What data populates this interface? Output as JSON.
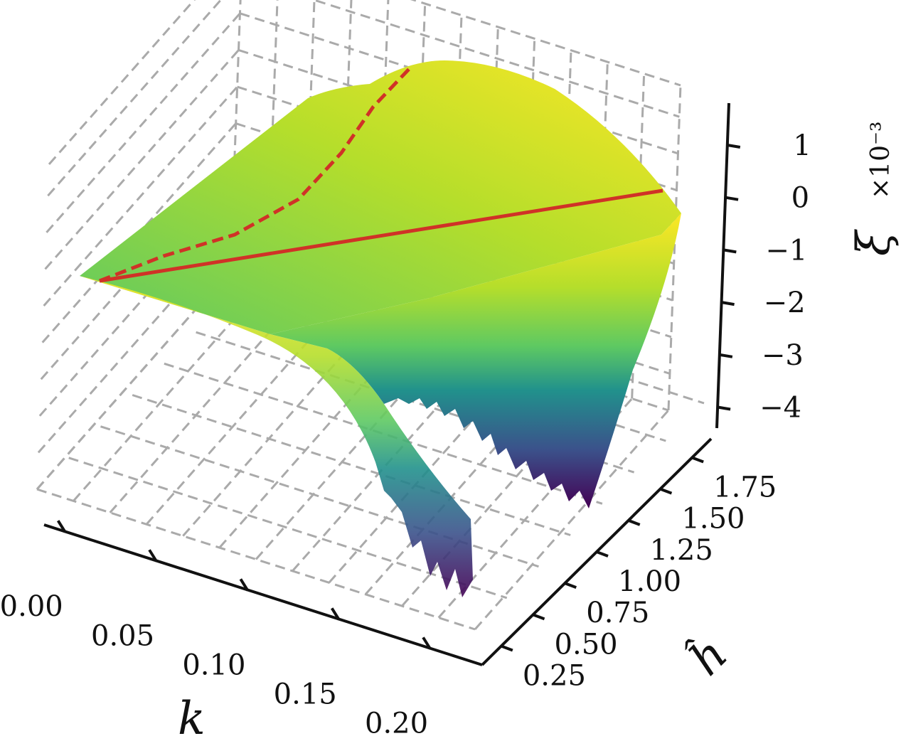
{
  "chart_data": {
    "type": "surface3d",
    "colormap": "viridis",
    "grid": true,
    "axes": {
      "x": {
        "label": "k",
        "ticks": [
          "0.00",
          "0.05",
          "0.10",
          "0.15",
          "0.20"
        ],
        "tick_values": [
          0.0,
          0.05,
          0.1,
          0.15,
          0.2
        ],
        "range": [
          -0.01,
          0.23
        ]
      },
      "y": {
        "label": "ĥ",
        "ticks": [
          "0.25",
          "0.50",
          "0.75",
          "1.00",
          "1.25",
          "1.50",
          "1.75"
        ],
        "tick_values": [
          0.25,
          0.5,
          0.75,
          1.0,
          1.25,
          1.5,
          1.75
        ],
        "range": [
          0.1,
          1.9
        ]
      },
      "z": {
        "label": "ξ",
        "exponent_label": "×10⁻³",
        "ticks": [
          "1",
          "0",
          "−1",
          "−2",
          "−3",
          "−4"
        ],
        "tick_values": [
          1,
          0,
          -1,
          -2,
          -3,
          -4
        ],
        "range": [
          -4.4,
          1.8
        ]
      }
    },
    "lines": [
      {
        "style": "solid",
        "color": "#d03227",
        "points": [
          [
            0.0,
            0.25,
            -1.75
          ],
          [
            0.2,
            1.75,
            0.0
          ]
        ]
      },
      {
        "style": "dashed",
        "color": "#d03227",
        "points": [
          [
            0.0,
            0.25,
            -1.75
          ],
          [
            0.03,
            0.55,
            -1.1
          ],
          [
            0.06,
            0.9,
            -0.4
          ],
          [
            0.085,
            1.2,
            0.4
          ],
          [
            0.1,
            1.5,
            1.3
          ],
          [
            0.11,
            1.75,
            2.4
          ]
        ]
      }
    ]
  }
}
